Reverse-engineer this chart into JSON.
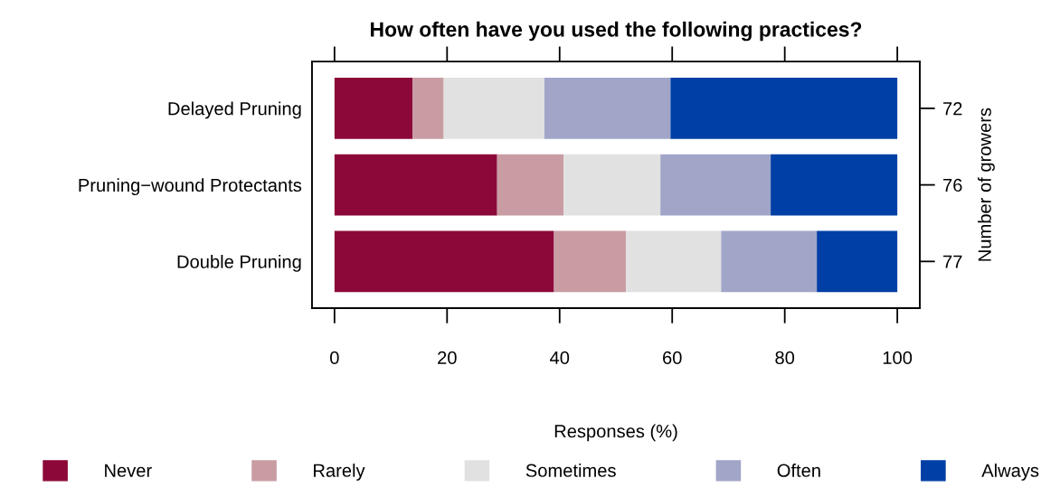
{
  "chart_data": {
    "type": "bar",
    "orientation": "horizontal",
    "stacked": true,
    "title": "How often have you used the following practices?",
    "xlabel": "Responses (%)",
    "y2label": "Number of growers",
    "categories": [
      "Delayed Pruning",
      "Pruning−wound Protectants",
      "Double Pruning"
    ],
    "y2_categories": [
      "72",
      "76",
      "77"
    ],
    "series": [
      {
        "name": "Never",
        "color": "#8c0839",
        "values": [
          13.9,
          28.9,
          39.0
        ]
      },
      {
        "name": "Rarely",
        "color": "#c99ca3",
        "values": [
          5.5,
          11.8,
          12.8
        ]
      },
      {
        "name": "Sometimes",
        "color": "#e1e1e1",
        "values": [
          17.9,
          17.2,
          16.9
        ]
      },
      {
        "name": "Often",
        "color": "#a1a5c8",
        "values": [
          22.4,
          19.6,
          17.0
        ]
      },
      {
        "name": "Always",
        "color": "#003fa5",
        "values": [
          40.3,
          22.5,
          14.3
        ]
      }
    ],
    "xlim": [
      -4,
      104
    ],
    "xticks": [
      0,
      20,
      40,
      60,
      80,
      100
    ],
    "grid": false,
    "legend": "bottom"
  }
}
